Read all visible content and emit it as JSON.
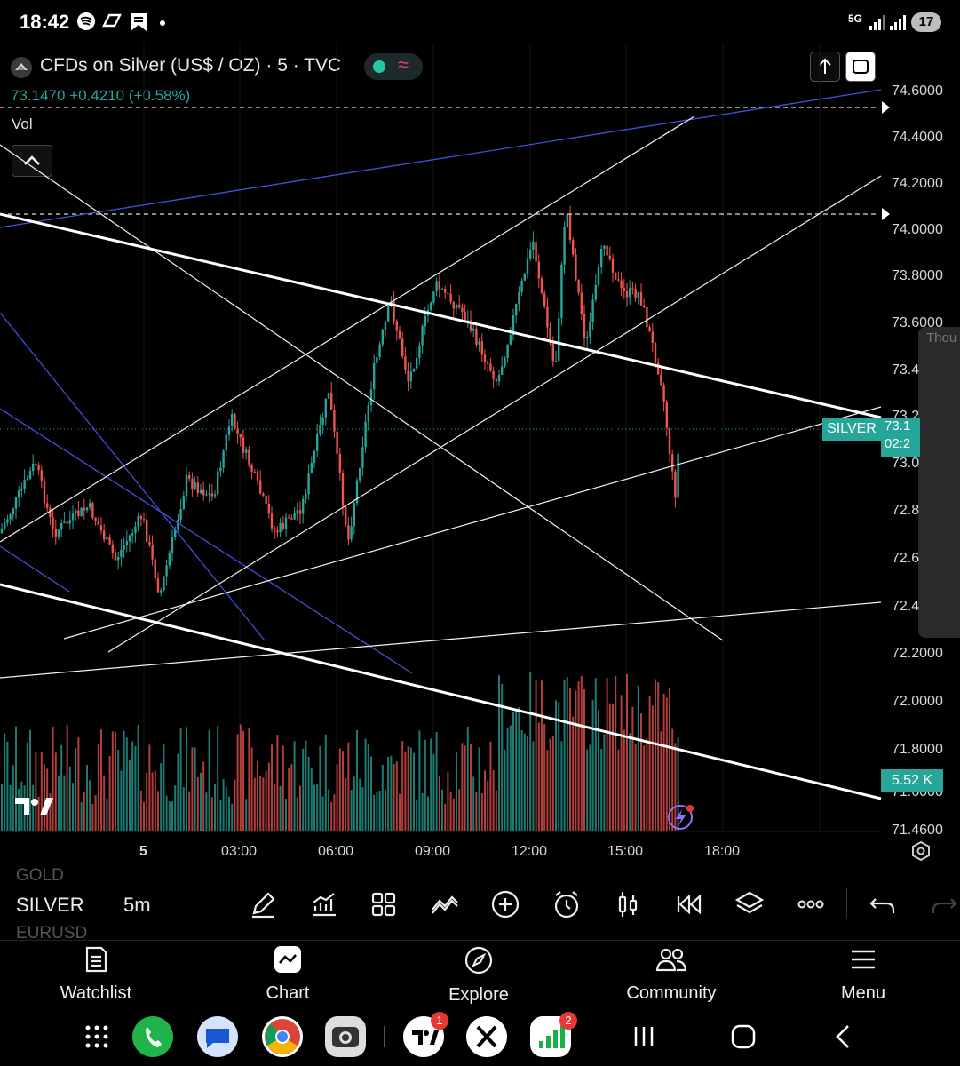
{
  "status_bar": {
    "time": "18:42",
    "network": "5G",
    "battery": "17"
  },
  "chart_header": {
    "symbol_title": "CFDs on Silver (US$ / OZ) · 5 · TVC",
    "price": "73.1470",
    "change": "+0.4210",
    "change_pct": "(+0.58%)",
    "price_line": "73.1470  +0.4210 (+0.58%)",
    "vol_label": "Vol"
  },
  "price_axis": {
    "labels": [
      "74.6000",
      "74.4000",
      "74.2000",
      "74.0000",
      "73.8000",
      "73.6000",
      "73.4",
      "73.2",
      "73.0",
      "72.8",
      "72.6",
      "72.4",
      "72.2000",
      "72.0000",
      "71.8000",
      "71.6000",
      "71.4600"
    ],
    "silver_tag": "SILVER",
    "price_tag_top": "73.1",
    "price_tag_bottom": "02:2",
    "volume_tag": "5.52 K"
  },
  "time_axis": {
    "labels": [
      "5",
      "03:00",
      "06:00",
      "09:00",
      "12:00",
      "15:00",
      "18:00"
    ]
  },
  "side_panel": {
    "label": "Thou"
  },
  "toolbar": {
    "symbol_prev": "GOLD",
    "symbol": "SILVER",
    "symbol_next": "EURUSD",
    "interval": "5m",
    "tools": [
      "pencil-icon",
      "indicators-icon",
      "layout-icon",
      "patterns-icon",
      "add-icon",
      "alert-icon",
      "candles-icon",
      "replay-icon",
      "layers-icon",
      "more-icon",
      "undo-icon",
      "redo-icon"
    ]
  },
  "bottom_nav": {
    "items": [
      {
        "label": "Watchlist"
      },
      {
        "label": "Chart"
      },
      {
        "label": "Explore"
      },
      {
        "label": "Community"
      },
      {
        "label": "Menu"
      }
    ]
  },
  "dock": {
    "tradingview_badge": "1",
    "chart_app_badge": "2"
  },
  "colors": {
    "up": "#26a69a",
    "down": "#ef5350",
    "accent_blue": "#3f51d8",
    "background": "#000000"
  }
}
